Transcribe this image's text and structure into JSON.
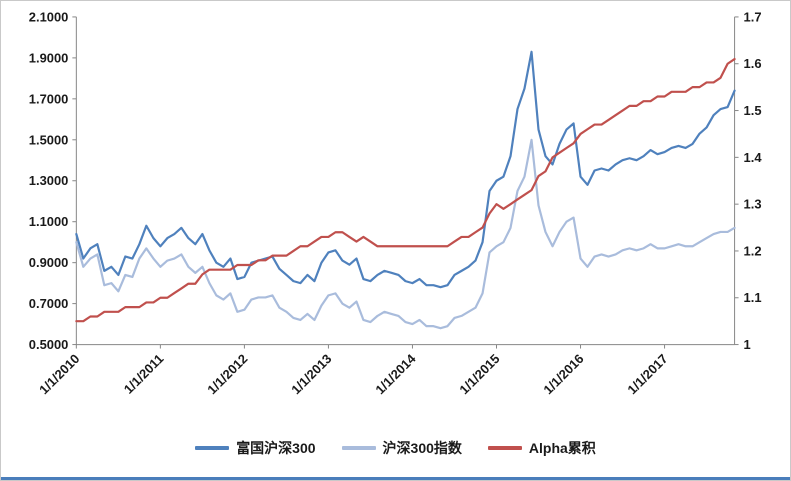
{
  "window": {
    "background": "#ffffff",
    "border_color": "#c9c9c9",
    "bottom_bar_color": "#4a7ebb"
  },
  "chart_data": {
    "type": "line",
    "title": "",
    "grid": false,
    "x_dates": [
      "2010-01",
      "2010-02",
      "2010-03",
      "2010-04",
      "2010-05",
      "2010-06",
      "2010-07",
      "2010-08",
      "2010-09",
      "2010-10",
      "2010-11",
      "2010-12",
      "2011-01",
      "2011-02",
      "2011-03",
      "2011-04",
      "2011-05",
      "2011-06",
      "2011-07",
      "2011-08",
      "2011-09",
      "2011-10",
      "2011-11",
      "2011-12",
      "2012-01",
      "2012-02",
      "2012-03",
      "2012-04",
      "2012-05",
      "2012-06",
      "2012-07",
      "2012-08",
      "2012-09",
      "2012-10",
      "2012-11",
      "2012-12",
      "2013-01",
      "2013-02",
      "2013-03",
      "2013-04",
      "2013-05",
      "2013-06",
      "2013-07",
      "2013-08",
      "2013-09",
      "2013-10",
      "2013-11",
      "2013-12",
      "2014-01",
      "2014-02",
      "2014-03",
      "2014-04",
      "2014-05",
      "2014-06",
      "2014-07",
      "2014-08",
      "2014-09",
      "2014-10",
      "2014-11",
      "2014-12",
      "2015-01",
      "2015-02",
      "2015-03",
      "2015-04",
      "2015-05",
      "2015-06",
      "2015-07",
      "2015-08",
      "2015-09",
      "2015-10",
      "2015-11",
      "2015-12",
      "2016-01",
      "2016-02",
      "2016-03",
      "2016-04",
      "2016-05",
      "2016-06",
      "2016-07",
      "2016-08",
      "2016-09",
      "2016-10",
      "2016-11",
      "2016-12",
      "2017-01",
      "2017-02",
      "2017-03",
      "2017-04",
      "2017-05",
      "2017-06",
      "2017-07",
      "2017-08",
      "2017-09",
      "2017-10",
      "2017-11"
    ],
    "series": [
      {
        "name": "富国沪深300",
        "axis": "left",
        "color": "#4f81bd",
        "values": [
          1.04,
          0.92,
          0.97,
          0.99,
          0.86,
          0.88,
          0.84,
          0.93,
          0.92,
          0.99,
          1.08,
          1.02,
          0.98,
          1.02,
          1.04,
          1.07,
          1.02,
          0.99,
          1.04,
          0.96,
          0.9,
          0.88,
          0.92,
          0.82,
          0.83,
          0.9,
          0.91,
          0.92,
          0.93,
          0.87,
          0.84,
          0.81,
          0.8,
          0.84,
          0.81,
          0.9,
          0.95,
          0.96,
          0.91,
          0.89,
          0.92,
          0.82,
          0.81,
          0.84,
          0.86,
          0.85,
          0.84,
          0.81,
          0.8,
          0.82,
          0.79,
          0.79,
          0.78,
          0.79,
          0.84,
          0.86,
          0.88,
          0.91,
          1.0,
          1.25,
          1.3,
          1.32,
          1.42,
          1.65,
          1.75,
          1.93,
          1.55,
          1.42,
          1.38,
          1.48,
          1.55,
          1.58,
          1.32,
          1.28,
          1.35,
          1.36,
          1.35,
          1.38,
          1.4,
          1.41,
          1.4,
          1.42,
          1.45,
          1.43,
          1.44,
          1.46,
          1.47,
          1.46,
          1.48,
          1.53,
          1.56,
          1.62,
          1.65,
          1.66,
          1.74
        ]
      },
      {
        "name": "沪深300指数",
        "axis": "left",
        "color": "#a9bcdc",
        "values": [
          1.0,
          0.88,
          0.92,
          0.94,
          0.79,
          0.8,
          0.76,
          0.84,
          0.83,
          0.92,
          0.97,
          0.92,
          0.88,
          0.91,
          0.92,
          0.94,
          0.88,
          0.85,
          0.88,
          0.8,
          0.74,
          0.72,
          0.75,
          0.66,
          0.67,
          0.72,
          0.73,
          0.73,
          0.74,
          0.68,
          0.66,
          0.63,
          0.62,
          0.65,
          0.62,
          0.69,
          0.74,
          0.75,
          0.7,
          0.68,
          0.71,
          0.62,
          0.61,
          0.64,
          0.66,
          0.65,
          0.64,
          0.61,
          0.6,
          0.62,
          0.59,
          0.59,
          0.58,
          0.59,
          0.63,
          0.64,
          0.66,
          0.68,
          0.75,
          0.95,
          0.98,
          1.0,
          1.07,
          1.25,
          1.32,
          1.5,
          1.18,
          1.05,
          0.98,
          1.05,
          1.1,
          1.12,
          0.92,
          0.88,
          0.93,
          0.94,
          0.93,
          0.94,
          0.96,
          0.97,
          0.96,
          0.97,
          0.99,
          0.97,
          0.97,
          0.98,
          0.99,
          0.98,
          0.98,
          1.0,
          1.02,
          1.04,
          1.05,
          1.05,
          1.07
        ]
      },
      {
        "name": "Alpha累积",
        "axis": "right",
        "color": "#c0504d",
        "values": [
          1.05,
          1.05,
          1.06,
          1.06,
          1.07,
          1.07,
          1.07,
          1.08,
          1.08,
          1.08,
          1.09,
          1.09,
          1.1,
          1.1,
          1.11,
          1.12,
          1.13,
          1.13,
          1.15,
          1.16,
          1.16,
          1.16,
          1.16,
          1.17,
          1.17,
          1.17,
          1.18,
          1.18,
          1.19,
          1.19,
          1.19,
          1.2,
          1.21,
          1.21,
          1.22,
          1.23,
          1.23,
          1.24,
          1.24,
          1.23,
          1.22,
          1.23,
          1.22,
          1.21,
          1.21,
          1.21,
          1.21,
          1.21,
          1.21,
          1.21,
          1.21,
          1.21,
          1.21,
          1.21,
          1.22,
          1.23,
          1.23,
          1.24,
          1.25,
          1.28,
          1.3,
          1.29,
          1.3,
          1.31,
          1.32,
          1.33,
          1.36,
          1.37,
          1.4,
          1.41,
          1.42,
          1.43,
          1.45,
          1.46,
          1.47,
          1.47,
          1.48,
          1.49,
          1.5,
          1.51,
          1.51,
          1.52,
          1.52,
          1.53,
          1.53,
          1.54,
          1.54,
          1.54,
          1.55,
          1.55,
          1.56,
          1.56,
          1.57,
          1.6,
          1.61
        ]
      }
    ],
    "left_axis": {
      "min": 0.5,
      "max": 2.1,
      "step": 0.2,
      "tick_labels": [
        "0.5000",
        "0.7000",
        "0.9000",
        "1.1000",
        "1.3000",
        "1.5000",
        "1.7000",
        "1.9000",
        "2.1000"
      ]
    },
    "right_axis": {
      "min": 1,
      "max": 1.7,
      "step": 0.1,
      "tick_labels": [
        "1",
        "1.1",
        "1.2",
        "1.3",
        "1.4",
        "1.5",
        "1.6",
        "1.7"
      ]
    },
    "x_axis": {
      "tick_labels": [
        "1/1/2010",
        "1/1/2011",
        "1/1/2012",
        "1/1/2013",
        "1/1/2014",
        "1/1/2015",
        "1/1/2016",
        "1/1/2017"
      ],
      "tick_positions_years": [
        2010,
        2011,
        2012,
        2013,
        2014,
        2015,
        2016,
        2017
      ]
    },
    "legend": {
      "position": "bottom",
      "entries": [
        "富国沪深300",
        "沪深300指数",
        "Alpha累积"
      ]
    }
  }
}
